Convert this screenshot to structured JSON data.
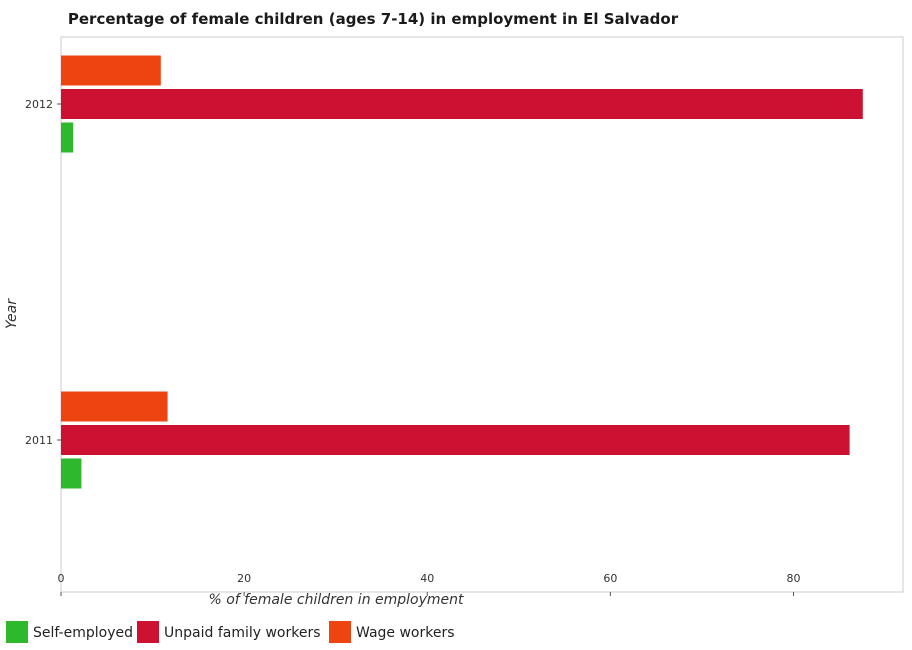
{
  "chart_data": {
    "type": "bar",
    "orientation": "horizontal",
    "title": "Percentage of female children (ages 7-14) in employment in El Salvador",
    "xlabel": "% of female children in employment",
    "ylabel": "Year",
    "categories": [
      "2011",
      "2012"
    ],
    "series": [
      {
        "name": "Self-employed",
        "color": "#2eb82e",
        "values": [
          2.23,
          1.33
        ]
      },
      {
        "name": "Unpaid family workers",
        "color": "#cc1133",
        "values": [
          86.13,
          87.57
        ]
      },
      {
        "name": "Wage workers",
        "color": "#ee4411",
        "values": [
          11.64,
          10.9
        ]
      }
    ],
    "xlim": [
      0,
      91.96
    ],
    "xticks": [
      0,
      20,
      40,
      60,
      80
    ],
    "grid": false,
    "legend_position": "bottom-left"
  }
}
